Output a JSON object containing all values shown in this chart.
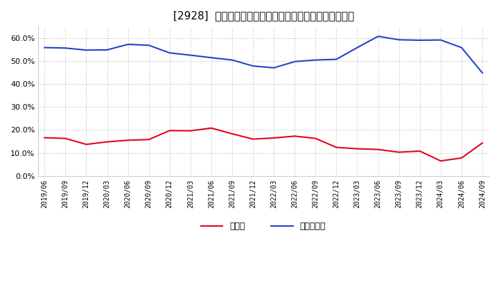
{
  "title": "[2928]  現頴金、有利子負債の総資産に対する比率の推移",
  "x_labels": [
    "2019/06",
    "2019/09",
    "2019/12",
    "2020/03",
    "2020/06",
    "2020/09",
    "2020/12",
    "2021/03",
    "2021/06",
    "2021/09",
    "2021/12",
    "2022/03",
    "2022/06",
    "2022/09",
    "2022/12",
    "2023/03",
    "2023/06",
    "2023/09",
    "2023/12",
    "2024/03",
    "2024/06",
    "2024/09"
  ],
  "cash": [
    0.166,
    0.163,
    0.137,
    0.148,
    0.155,
    0.158,
    0.197,
    0.196,
    0.208,
    0.183,
    0.16,
    0.165,
    0.173,
    0.163,
    0.124,
    0.118,
    0.115,
    0.103,
    0.108,
    0.065,
    0.078,
    0.143
  ],
  "interest_bearing_debt": [
    0.558,
    0.556,
    0.547,
    0.548,
    0.572,
    0.568,
    0.535,
    0.525,
    0.514,
    0.504,
    0.478,
    0.47,
    0.497,
    0.504,
    0.507,
    0.558,
    0.607,
    0.592,
    0.59,
    0.591,
    0.558,
    0.448
  ],
  "cash_color": "#e8001c",
  "debt_color": "#1e44c8",
  "background_color": "#ffffff",
  "plot_bg_color": "#ffffff",
  "grid_color": "#b0b0b0",
  "ylim": [
    0.0,
    0.65
  ],
  "yticks": [
    0.0,
    0.1,
    0.2,
    0.3,
    0.4,
    0.5,
    0.6
  ],
  "legend_cash": "現頴金",
  "legend_debt": "有利子負債",
  "line_width": 1.5
}
